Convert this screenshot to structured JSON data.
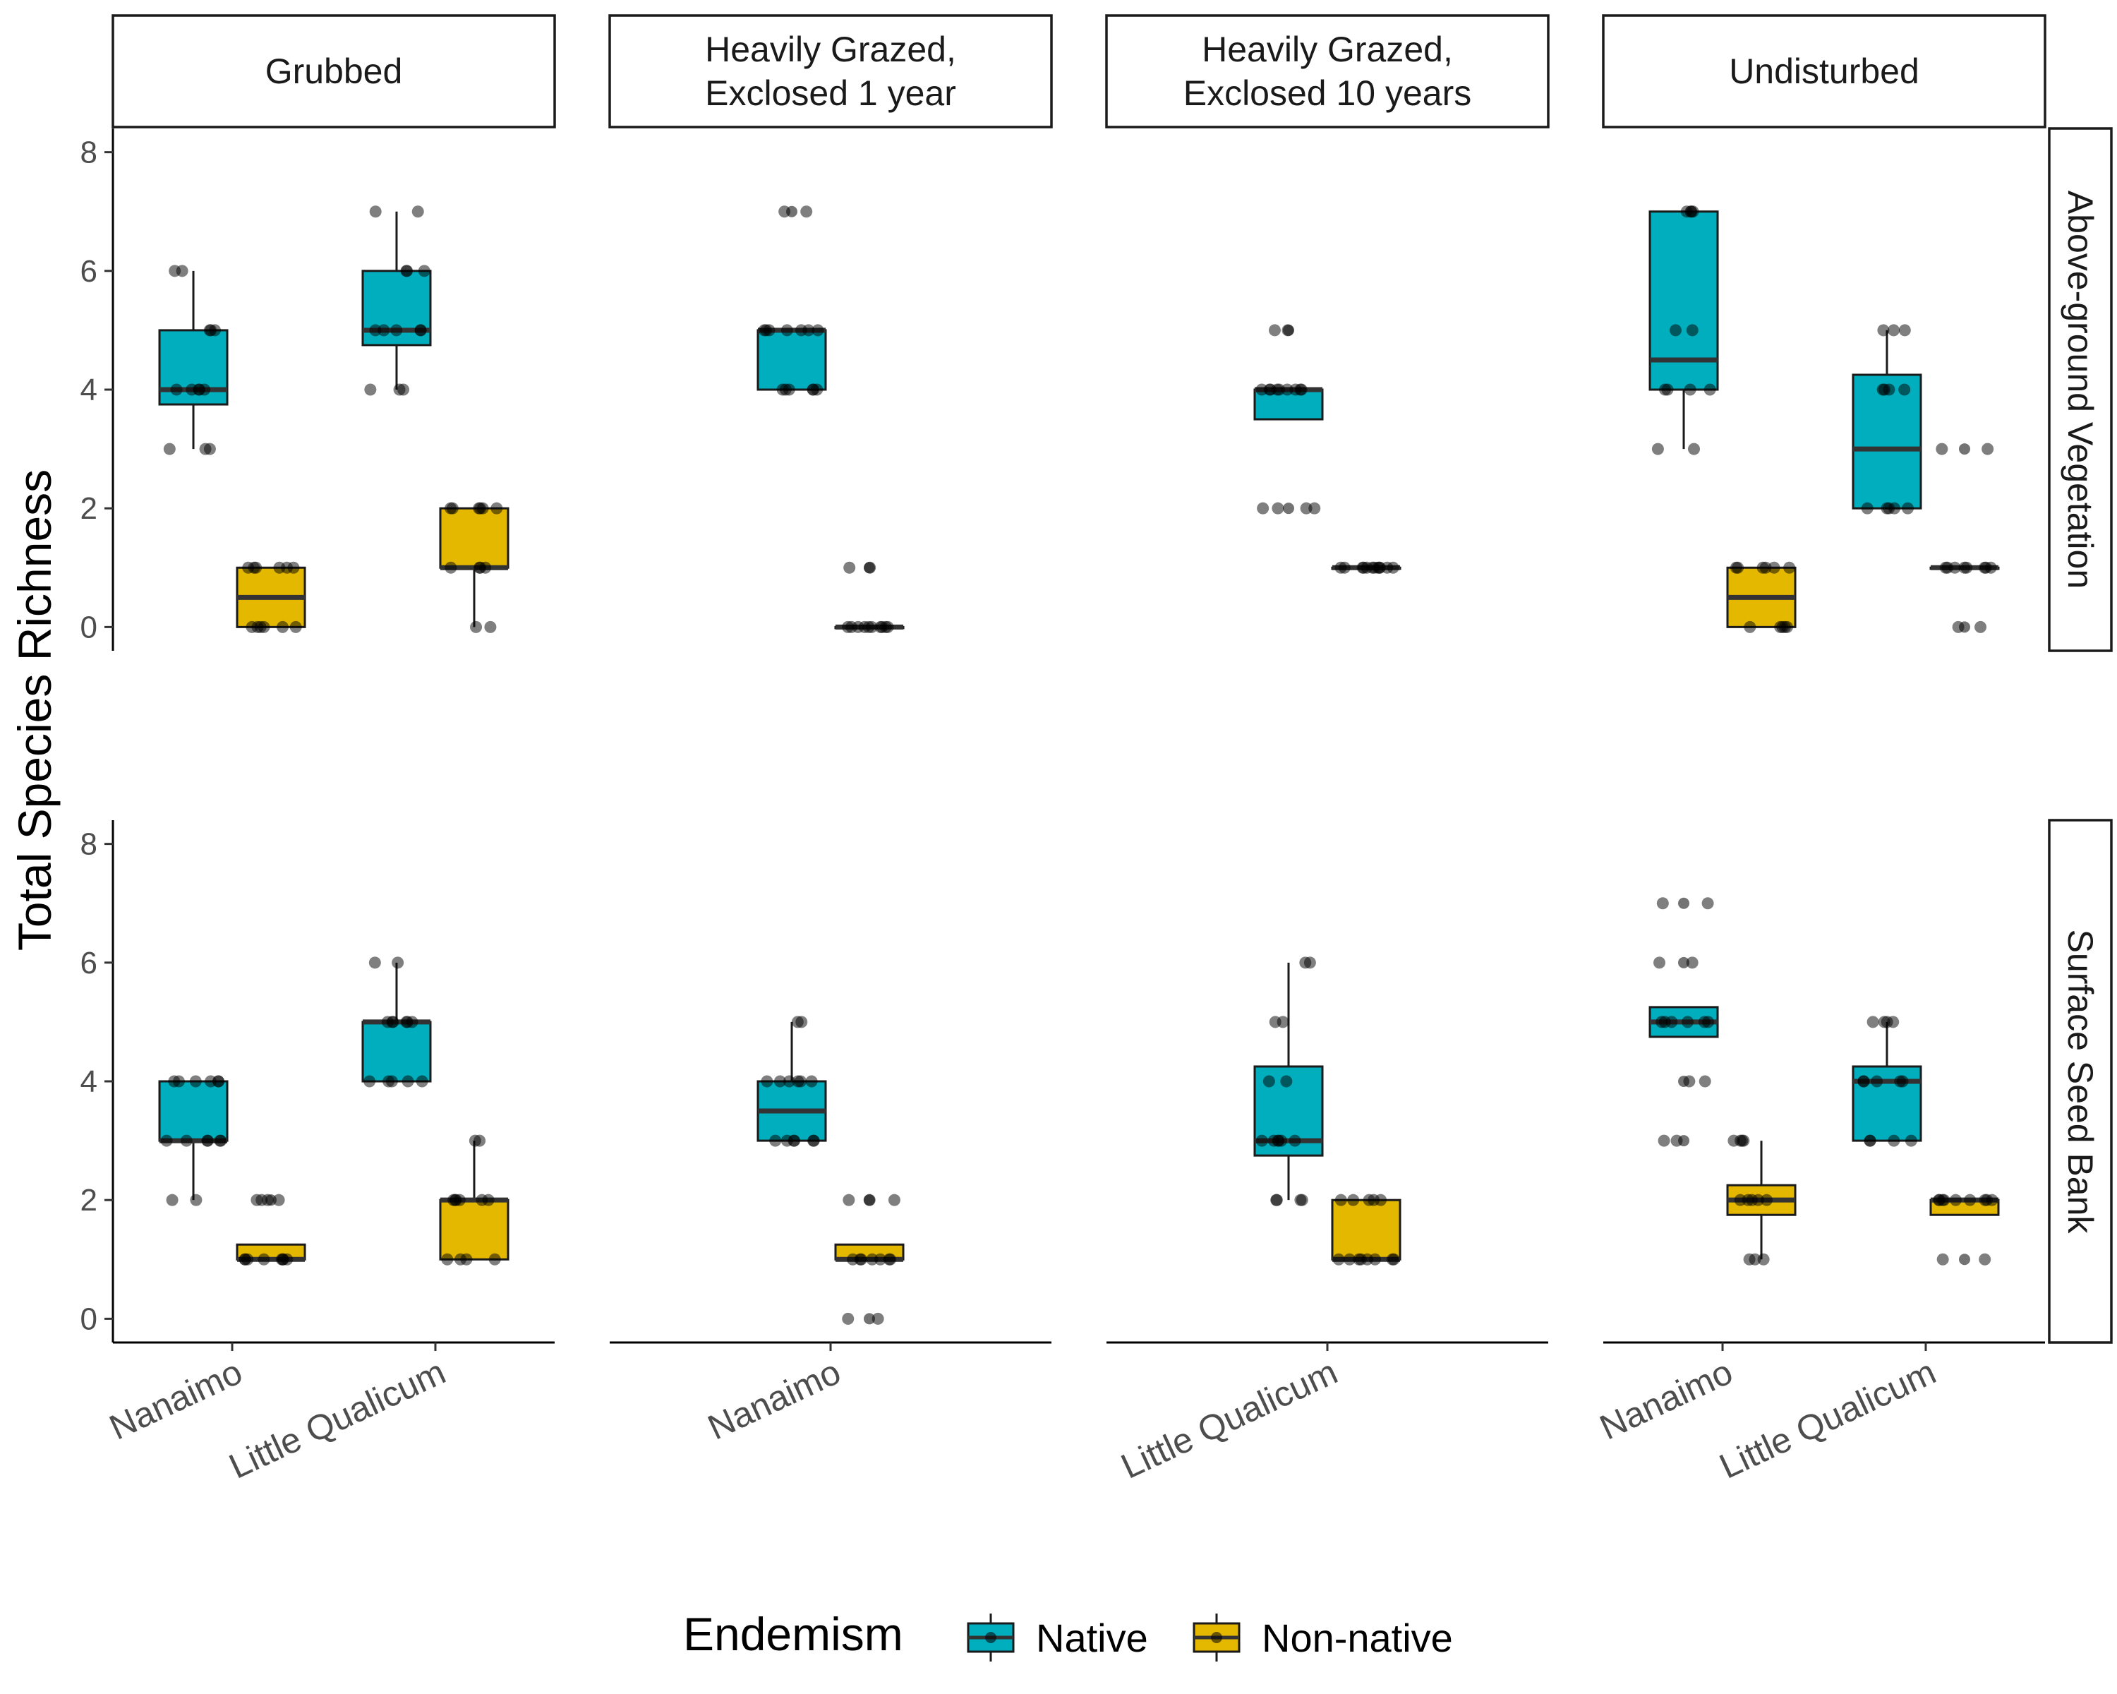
{
  "chart_data": {
    "type": "box",
    "ylabel": "Total Species Richness",
    "xlabel": "",
    "ylim": [
      0,
      8
    ],
    "y_ticks": [
      0,
      2,
      4,
      6,
      8
    ],
    "facet_columns": [
      "Grubbed",
      "Heavily Grazed,\nExclosed 1 year",
      "Heavily Grazed,\nExclosed 10 years",
      "Undisturbed"
    ],
    "facet_rows": [
      "Above-ground Vegetation",
      "Surface Seed Bank"
    ],
    "legend": {
      "title": "Endemism",
      "position": "bottom",
      "items": [
        {
          "name": "Native",
          "color": "#00aebd"
        },
        {
          "name": "Non-native",
          "color": "#e5b800"
        }
      ]
    },
    "panels": [
      {
        "row": 0,
        "col": 0,
        "sites": [
          "Nanaimo",
          "Little Qualicum"
        ],
        "boxes": [
          {
            "site": 0,
            "group": "Native",
            "lo": 3,
            "q1": 3.75,
            "med": 4,
            "q3": 5,
            "hi": 6,
            "outliers": [],
            "points": [
              3,
              3,
              3,
              4,
              4,
              4,
              4,
              4,
              5,
              5,
              5,
              6,
              6
            ]
          },
          {
            "site": 0,
            "group": "Non-native",
            "lo": 0,
            "q1": 0,
            "med": 0.5,
            "q3": 1,
            "hi": 1,
            "outliers": [],
            "points": [
              0,
              0,
              0,
              0,
              0,
              0,
              1,
              1,
              1,
              1,
              1,
              1
            ]
          },
          {
            "site": 1,
            "group": "Native",
            "lo": 4,
            "q1": 4.75,
            "med": 5,
            "q3": 6,
            "hi": 7,
            "outliers": [],
            "points": [
              4,
              4,
              4,
              5,
              5,
              5,
              5,
              5,
              6,
              6,
              6,
              7,
              7
            ]
          },
          {
            "site": 1,
            "group": "Non-native",
            "lo": 0,
            "q1": 1,
            "med": 1,
            "q3": 2,
            "hi": 2,
            "outliers": [],
            "points": [
              0,
              0,
              1,
              1,
              1,
              1,
              2,
              2,
              2,
              2,
              2,
              2
            ]
          }
        ]
      },
      {
        "row": 0,
        "col": 1,
        "sites": [
          "Nanaimo"
        ],
        "boxes": [
          {
            "site": 0,
            "group": "Native",
            "lo": 4,
            "q1": 4,
            "med": 5,
            "q3": 5,
            "hi": 5,
            "outliers": [
              7
            ],
            "points": [
              4,
              4,
              4,
              4,
              4,
              4,
              5,
              5,
              5,
              5,
              5,
              5,
              5,
              7,
              7
            ]
          },
          {
            "site": 0,
            "group": "Non-native",
            "lo": 0,
            "q1": 0,
            "med": 0,
            "q3": 0,
            "hi": 0,
            "outliers": [
              1
            ],
            "points": [
              0,
              0,
              0,
              0,
              0,
              0,
              0,
              0,
              0,
              0,
              1,
              1
            ]
          }
        ]
      },
      {
        "row": 0,
        "col": 2,
        "sites": [
          "Little Qualicum"
        ],
        "boxes": [
          {
            "site": 0,
            "group": "Native",
            "lo": 3.5,
            "q1": 3.5,
            "med": 4,
            "q3": 4,
            "hi": 4,
            "outliers": [
              2,
              5
            ],
            "points": [
              2,
              2,
              2,
              2,
              4,
              4,
              4,
              4,
              4,
              4,
              4,
              4,
              4,
              5,
              5
            ]
          },
          {
            "site": 0,
            "group": "Non-native",
            "lo": 1,
            "q1": 1,
            "med": 1,
            "q3": 1,
            "hi": 1,
            "outliers": [],
            "points": [
              1,
              1,
              1,
              1,
              1,
              1,
              1,
              1,
              1,
              1,
              1,
              1
            ]
          }
        ]
      },
      {
        "row": 0,
        "col": 3,
        "sites": [
          "Nanaimo",
          "Little Qualicum"
        ],
        "boxes": [
          {
            "site": 0,
            "group": "Native",
            "lo": 3,
            "q1": 4,
            "med": 4.5,
            "q3": 7,
            "hi": 7,
            "outliers": [],
            "points": [
              3,
              3,
              4,
              4,
              4,
              4,
              5,
              5,
              7,
              7,
              7,
              7
            ]
          },
          {
            "site": 0,
            "group": "Non-native",
            "lo": 0,
            "q1": 0,
            "med": 0.5,
            "q3": 1,
            "hi": 1,
            "outliers": [],
            "points": [
              0,
              0,
              0,
              0,
              0,
              1,
              1,
              1,
              1,
              1,
              1
            ]
          },
          {
            "site": 1,
            "group": "Native",
            "lo": 2,
            "q1": 2,
            "med": 3,
            "q3": 4.25,
            "hi": 5,
            "outliers": [],
            "points": [
              2,
              2,
              2,
              2,
              2,
              4,
              4,
              4,
              4,
              5,
              5,
              5
            ]
          },
          {
            "site": 1,
            "group": "Non-native",
            "lo": 1,
            "q1": 1,
            "med": 1,
            "q3": 1,
            "hi": 1,
            "outliers": [
              0,
              3
            ],
            "points": [
              0,
              0,
              1,
              1,
              1,
              1,
              1,
              1,
              1,
              1,
              3,
              3
            ]
          }
        ]
      },
      {
        "row": 1,
        "col": 0,
        "sites": [
          "Nanaimo",
          "Little Qualicum"
        ],
        "boxes": [
          {
            "site": 0,
            "group": "Native",
            "lo": 2,
            "q1": 3,
            "med": 3,
            "q3": 4,
            "hi": 4,
            "outliers": [],
            "points": [
              2,
              2,
              3,
              3,
              3,
              3,
              3,
              3,
              4,
              4,
              4,
              4,
              4,
              4
            ]
          },
          {
            "site": 0,
            "group": "Non-native",
            "lo": 1,
            "q1": 1,
            "med": 1,
            "q3": 1.25,
            "hi": 1.25,
            "outliers": [
              2
            ],
            "points": [
              1,
              1,
              1,
              1,
              1,
              1,
              1,
              1,
              2,
              2,
              2,
              2
            ]
          },
          {
            "site": 1,
            "group": "Native",
            "lo": 4,
            "q1": 4,
            "med": 5,
            "q3": 5,
            "hi": 6,
            "outliers": [],
            "points": [
              4,
              4,
              4,
              4,
              4,
              5,
              5,
              5,
              5,
              5,
              5,
              6,
              6
            ]
          },
          {
            "site": 1,
            "group": "Non-native",
            "lo": 1,
            "q1": 1,
            "med": 2,
            "q3": 2,
            "hi": 3,
            "outliers": [],
            "points": [
              1,
              1,
              1,
              1,
              2,
              2,
              2,
              2,
              2,
              2,
              3,
              3
            ]
          }
        ]
      },
      {
        "row": 1,
        "col": 1,
        "sites": [
          "Nanaimo"
        ],
        "boxes": [
          {
            "site": 0,
            "group": "Native",
            "lo": 3,
            "q1": 3,
            "med": 3.5,
            "q3": 4,
            "hi": 5,
            "outliers": [],
            "points": [
              3,
              3,
              3,
              3,
              3,
              3,
              4,
              4,
              4,
              4,
              4,
              4,
              5,
              5
            ]
          },
          {
            "site": 0,
            "group": "Non-native",
            "lo": 1,
            "q1": 1,
            "med": 1,
            "q3": 1.25,
            "hi": 1.25,
            "outliers": [
              0,
              2
            ],
            "points": [
              0,
              0,
              1,
              1,
              1,
              1,
              1,
              1,
              1,
              2,
              2,
              2
            ]
          }
        ]
      },
      {
        "row": 1,
        "col": 2,
        "sites": [
          "Little Qualicum"
        ],
        "boxes": [
          {
            "site": 0,
            "group": "Native",
            "lo": 2,
            "q1": 2.75,
            "med": 3,
            "q3": 4.25,
            "hi": 6,
            "outliers": [],
            "points": [
              2,
              2,
              2,
              2,
              3,
              3,
              3,
              3,
              3,
              3,
              4,
              4,
              5,
              5,
              6,
              6
            ]
          },
          {
            "site": 0,
            "group": "Non-native",
            "lo": 1,
            "q1": 1,
            "med": 1,
            "q3": 2,
            "hi": 2,
            "outliers": [],
            "points": [
              1,
              1,
              1,
              1,
              1,
              1,
              1,
              1,
              2,
              2,
              2,
              2,
              2
            ]
          }
        ]
      },
      {
        "row": 1,
        "col": 3,
        "sites": [
          "Nanaimo",
          "Little Qualicum"
        ],
        "boxes": [
          {
            "site": 0,
            "group": "Native",
            "lo": 4.75,
            "q1": 4.75,
            "med": 5,
            "q3": 5.25,
            "hi": 5.25,
            "outliers": [
              3,
              4,
              6,
              7
            ],
            "points": [
              3,
              3,
              4,
              4,
              5,
              5,
              5,
              5,
              5,
              5,
              6,
              6,
              7,
              7
            ]
          },
          {
            "site": 0,
            "group": "Non-native",
            "lo": 1,
            "q1": 1.75,
            "med": 2,
            "q3": 2.25,
            "hi": 3,
            "outliers": [],
            "points": [
              1,
              1,
              1,
              2,
              2,
              2,
              2,
              2,
              3,
              3,
              3,
              3
            ]
          },
          {
            "site": 1,
            "group": "Native",
            "lo": 3,
            "q1": 3,
            "med": 4,
            "q3": 4.25,
            "hi": 5,
            "outliers": [],
            "points": [
              3,
              3,
              3,
              3,
              4,
              4,
              4,
              4,
              4,
              5,
              5,
              5,
              5
            ]
          },
          {
            "site": 1,
            "group": "Non-native",
            "lo": 1.75,
            "q1": 1.75,
            "med": 2,
            "q3": 2,
            "hi": 2,
            "outliers": [
              1
            ],
            "points": [
              1,
              1,
              2,
              2,
              2,
              2,
              2,
              2,
              2,
              2,
              2
            ]
          }
        ]
      }
    ]
  }
}
